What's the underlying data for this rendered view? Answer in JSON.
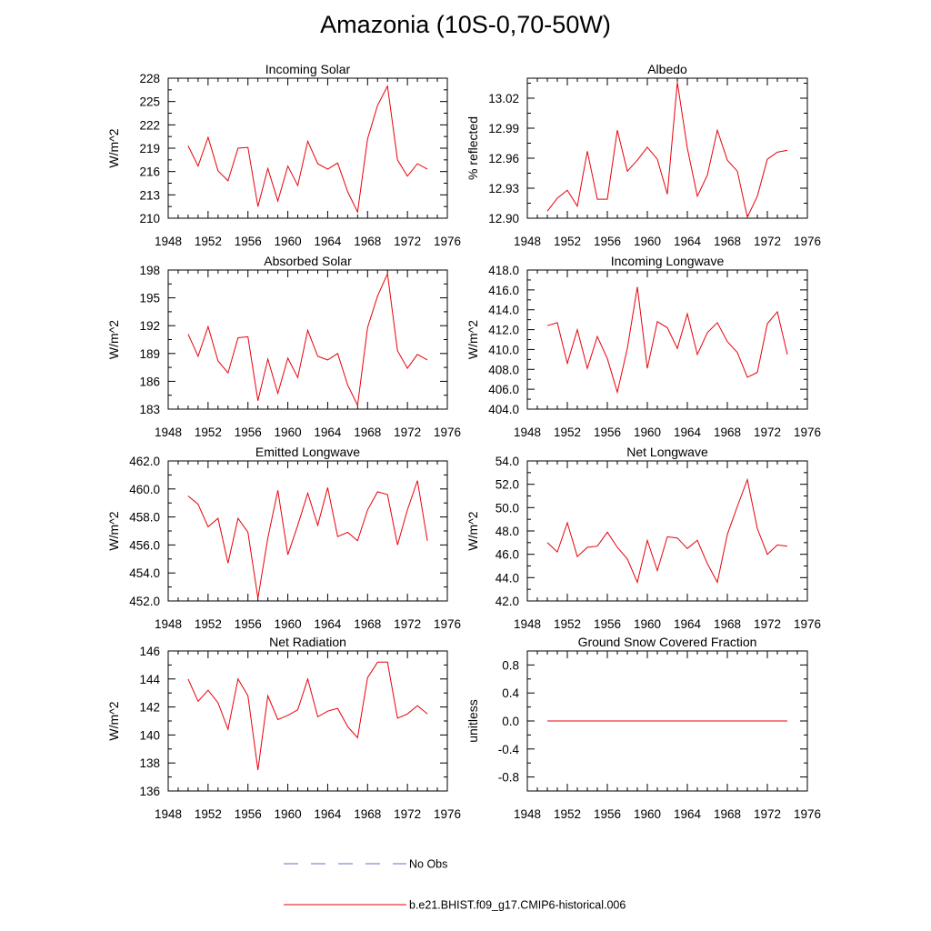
{
  "title": "Amazonia (10S-0,70-50W)",
  "colors": {
    "series": "#e8000b",
    "obs": "#6670c8",
    "axis": "#000000"
  },
  "legend": {
    "obs_label": "No Obs",
    "model_label": "b.e21.BHIST.f09_g17.CMIP6-historical.006"
  },
  "chart_data": [
    {
      "type": "line",
      "title": "Incoming Solar",
      "ylabel": "W/m^2",
      "xlim": [
        1948,
        1976
      ],
      "xticks": [
        "1948",
        "1952",
        "1956",
        "1960",
        "1964",
        "1968",
        "1972",
        "1976"
      ],
      "ylim": [
        210,
        228
      ],
      "yticks": [
        "210",
        "213",
        "216",
        "219",
        "222",
        "225",
        "228"
      ],
      "x": [
        1950,
        1951,
        1952,
        1953,
        1954,
        1955,
        1956,
        1957,
        1958,
        1959,
        1960,
        1961,
        1962,
        1963,
        1964,
        1965,
        1966,
        1967,
        1968,
        1969,
        1970,
        1971,
        1972,
        1973,
        1974
      ],
      "values": [
        219.3,
        216.7,
        220.4,
        216.1,
        214.8,
        219.0,
        219.1,
        211.5,
        216.4,
        212.2,
        216.7,
        214.2,
        219.9,
        217.0,
        216.3,
        217.1,
        213.4,
        210.8,
        220.2,
        224.5,
        227.0,
        217.5,
        215.4,
        217.0,
        216.3
      ]
    },
    {
      "type": "line",
      "title": "Albedo",
      "ylabel": "% reflected",
      "xlim": [
        1948,
        1976
      ],
      "xticks": [
        "1948",
        "1952",
        "1956",
        "1960",
        "1964",
        "1968",
        "1972",
        "1976"
      ],
      "ylim": [
        12.9,
        13.04
      ],
      "yticks": [
        "12.90",
        "12.93",
        "12.96",
        "12.99",
        "13.02"
      ],
      "x": [
        1950,
        1951,
        1952,
        1953,
        1954,
        1955,
        1956,
        1957,
        1958,
        1959,
        1960,
        1961,
        1962,
        1963,
        1964,
        1965,
        1966,
        1967,
        1968,
        1969,
        1970,
        1971,
        1972,
        1973,
        1974
      ],
      "values": [
        12.907,
        12.92,
        12.928,
        12.912,
        12.967,
        12.919,
        12.919,
        12.988,
        12.947,
        12.958,
        12.971,
        12.959,
        12.924,
        13.036,
        12.97,
        12.922,
        12.943,
        12.988,
        12.958,
        12.947,
        12.901,
        12.922,
        12.959,
        12.966,
        12.968
      ]
    },
    {
      "type": "line",
      "title": "Absorbed Solar",
      "ylabel": "W/m^2",
      "xlim": [
        1948,
        1976
      ],
      "xticks": [
        "1948",
        "1952",
        "1956",
        "1960",
        "1964",
        "1968",
        "1972",
        "1976"
      ],
      "ylim": [
        183,
        198
      ],
      "yticks": [
        "183",
        "186",
        "189",
        "192",
        "195",
        "198"
      ],
      "x": [
        1950,
        1951,
        1952,
        1953,
        1954,
        1955,
        1956,
        1957,
        1958,
        1959,
        1960,
        1961,
        1962,
        1963,
        1964,
        1965,
        1966,
        1967,
        1968,
        1969,
        1970,
        1971,
        1972,
        1973,
        1974
      ],
      "values": [
        191.1,
        188.7,
        191.9,
        188.2,
        186.9,
        190.7,
        190.8,
        183.9,
        188.4,
        184.7,
        188.5,
        186.4,
        191.5,
        188.7,
        188.3,
        189.0,
        185.6,
        183.4,
        191.8,
        195.2,
        197.6,
        189.3,
        187.4,
        188.9,
        188.3
      ]
    },
    {
      "type": "line",
      "title": "Incoming Longwave",
      "ylabel": "W/m^2",
      "xlim": [
        1948,
        1976
      ],
      "xticks": [
        "1948",
        "1952",
        "1956",
        "1960",
        "1964",
        "1968",
        "1972",
        "1976"
      ],
      "ylim": [
        404,
        418
      ],
      "yticks": [
        "404.0",
        "406.0",
        "408.0",
        "410.0",
        "412.0",
        "414.0",
        "416.0",
        "418.0"
      ],
      "x": [
        1950,
        1951,
        1952,
        1953,
        1954,
        1955,
        1956,
        1957,
        1958,
        1959,
        1960,
        1961,
        1962,
        1963,
        1964,
        1965,
        1966,
        1967,
        1968,
        1969,
        1970,
        1971,
        1972,
        1973,
        1974
      ],
      "values": [
        412.4,
        412.7,
        408.6,
        412.0,
        408.1,
        411.3,
        409.1,
        405.7,
        410.1,
        416.3,
        408.1,
        412.8,
        412.2,
        410.1,
        413.6,
        409.5,
        411.7,
        412.7,
        410.8,
        409.7,
        407.2,
        407.7,
        412.6,
        413.8,
        409.5
      ]
    },
    {
      "type": "line",
      "title": "Emitted Longwave",
      "ylabel": "W/m^2",
      "xlim": [
        1948,
        1976
      ],
      "xticks": [
        "1948",
        "1952",
        "1956",
        "1960",
        "1964",
        "1968",
        "1972",
        "1976"
      ],
      "ylim": [
        452,
        462
      ],
      "yticks": [
        "452.0",
        "454.0",
        "456.0",
        "458.0",
        "460.0",
        "462.0"
      ],
      "x": [
        1950,
        1951,
        1952,
        1953,
        1954,
        1955,
        1956,
        1957,
        1958,
        1959,
        1960,
        1961,
        1962,
        1963,
        1964,
        1965,
        1966,
        1967,
        1968,
        1969,
        1970,
        1971,
        1972,
        1973,
        1974
      ],
      "values": [
        459.5,
        458.9,
        457.3,
        457.9,
        454.7,
        457.9,
        456.9,
        452.2,
        456.5,
        459.9,
        455.3,
        457.4,
        459.7,
        457.4,
        460.1,
        456.6,
        456.9,
        456.3,
        458.5,
        459.8,
        459.6,
        456.0,
        458.5,
        460.6,
        456.3
      ]
    },
    {
      "type": "line",
      "title": "Net Longwave",
      "ylabel": "W/m^2",
      "xlim": [
        1948,
        1976
      ],
      "xticks": [
        "1948",
        "1952",
        "1956",
        "1960",
        "1964",
        "1968",
        "1972",
        "1976"
      ],
      "ylim": [
        42,
        54
      ],
      "yticks": [
        "42.0",
        "44.0",
        "46.0",
        "48.0",
        "50.0",
        "52.0",
        "54.0"
      ],
      "x": [
        1950,
        1951,
        1952,
        1953,
        1954,
        1955,
        1956,
        1957,
        1958,
        1959,
        1960,
        1961,
        1962,
        1963,
        1964,
        1965,
        1966,
        1967,
        1968,
        1969,
        1970,
        1971,
        1972,
        1973,
        1974
      ],
      "values": [
        47.0,
        46.2,
        48.7,
        45.8,
        46.6,
        46.7,
        47.9,
        46.6,
        45.6,
        43.6,
        47.2,
        44.6,
        47.5,
        47.4,
        46.5,
        47.2,
        45.2,
        43.6,
        47.7,
        50.1,
        52.4,
        48.2,
        46.0,
        46.8,
        46.7
      ]
    },
    {
      "type": "line",
      "title": "Net Radiation",
      "ylabel": "W/m^2",
      "xlim": [
        1948,
        1976
      ],
      "xticks": [
        "1948",
        "1952",
        "1956",
        "1960",
        "1964",
        "1968",
        "1972",
        "1976"
      ],
      "ylim": [
        136,
        146
      ],
      "yticks": [
        "136",
        "138",
        "140",
        "142",
        "144",
        "146"
      ],
      "x": [
        1950,
        1951,
        1952,
        1953,
        1954,
        1955,
        1956,
        1957,
        1958,
        1959,
        1960,
        1961,
        1962,
        1963,
        1964,
        1965,
        1966,
        1967,
        1968,
        1969,
        1970,
        1971,
        1972,
        1973,
        1974
      ],
      "values": [
        144.0,
        142.4,
        143.2,
        142.3,
        140.4,
        144.0,
        142.8,
        137.5,
        142.8,
        141.1,
        141.4,
        141.8,
        144.0,
        141.3,
        141.7,
        141.9,
        140.6,
        139.8,
        144.1,
        145.2,
        145.2,
        141.2,
        141.5,
        142.1,
        141.5
      ]
    },
    {
      "type": "line",
      "title": "Ground Snow Covered Fraction",
      "ylabel": "unitless",
      "xlim": [
        1948,
        1976
      ],
      "xticks": [
        "1948",
        "1952",
        "1956",
        "1960",
        "1964",
        "1968",
        "1972",
        "1976"
      ],
      "ylim": [
        -1.0,
        1.0
      ],
      "yticks": [
        "-0.8",
        "-0.4",
        "0.0",
        "0.4",
        "0.8"
      ],
      "x": [
        1950,
        1951,
        1952,
        1953,
        1954,
        1955,
        1956,
        1957,
        1958,
        1959,
        1960,
        1961,
        1962,
        1963,
        1964,
        1965,
        1966,
        1967,
        1968,
        1969,
        1970,
        1971,
        1972,
        1973,
        1974
      ],
      "values": [
        0,
        0,
        0,
        0,
        0,
        0,
        0,
        0,
        0,
        0,
        0,
        0,
        0,
        0,
        0,
        0,
        0,
        0,
        0,
        0,
        0,
        0,
        0,
        0,
        0
      ]
    }
  ]
}
